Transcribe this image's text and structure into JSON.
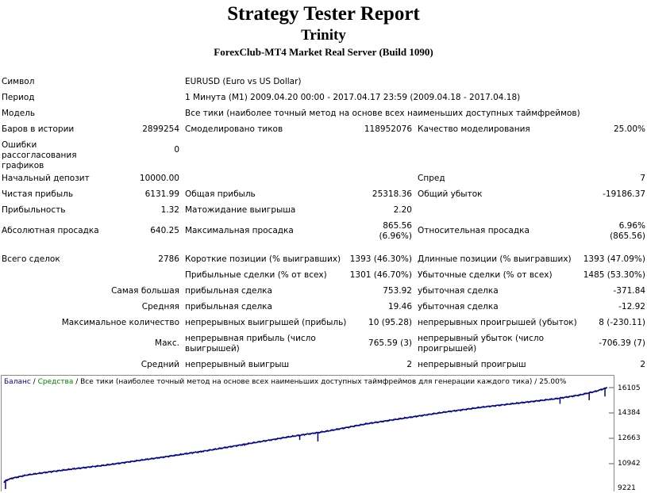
{
  "header": {
    "title": "Strategy Tester Report",
    "expert": "Trinity",
    "server": "ForexClub-MT4 Market Real Server (Build 1090)"
  },
  "info": {
    "symbol_label": "Символ",
    "symbol_value": "EURUSD (Euro vs US Dollar)",
    "period_label": "Период",
    "period_value": "1 Минута (M1) 2009.04.20 00:00 - 2017.04.17 23:59 (2009.04.18 - 2017.04.18)",
    "model_label": "Модель",
    "model_value": "Все тики (наиболее точный метод на основе всех наименьших доступных таймфреймов)",
    "bars_label": "Баров в истории",
    "bars_value": "2899254",
    "ticks_label": "Смоделировано тиков",
    "ticks_value": "118952076",
    "quality_label": "Качество моделирования",
    "quality_value": "25.00%",
    "errors_label": "Ошибки рассогласования графиков",
    "errors_value": "0"
  },
  "stats": {
    "deposit_label": "Начальный депозит",
    "deposit_value": "10000.00",
    "spread_label": "Спред",
    "spread_value": "7",
    "net_label": "Чистая прибыль",
    "net_value": "6131.99",
    "gross_profit_label": "Общая прибыль",
    "gross_profit_value": "25318.36",
    "gross_loss_label": "Общий убыток",
    "gross_loss_value": "-19186.37",
    "pf_label": "Прибыльность",
    "pf_value": "1.32",
    "payoff_label": "Матожидание выигрыша",
    "payoff_value": "2.20",
    "abs_dd_label": "Абсолютная просадка",
    "abs_dd_value": "640.25",
    "max_dd_label": "Максимальная просадка",
    "max_dd_value1": "865.56",
    "max_dd_value2": "(6.96%)",
    "rel_dd_label": "Относительная просадка",
    "rel_dd_value1": "6.96%",
    "rel_dd_value2": "(865.56)"
  },
  "trades": {
    "total_label": "Всего сделок",
    "total_value": "2786",
    "short_label": "Короткие позиции (% выигравших)",
    "short_value": "1393 (46.30%)",
    "long_label": "Длинные позиции (% выигравших)",
    "long_value": "1393 (47.09%)",
    "profit_trades_label": "Прибыльные сделки (% от всех)",
    "profit_trades_value": "1301 (46.70%)",
    "loss_trades_label": "Убыточные сделки (% от всех)",
    "loss_trades_value": "1485 (53.30%)",
    "largest_label": "Самая большая",
    "largest_profit_label": "прибыльная сделка",
    "largest_profit_value": "753.92",
    "largest_loss_label": "убыточная сделка",
    "largest_loss_value": "-371.84",
    "average_label": "Средняя",
    "average_profit_label": "прибыльная сделка",
    "average_profit_value": "19.46",
    "average_loss_label": "убыточная сделка",
    "average_loss_value": "-12.92",
    "maxcount_label": "Максимальное количество",
    "maxcount_wins_label": "непрерывных выигрышей (прибыль)",
    "maxcount_wins_value": "10 (95.28)",
    "maxcount_losses_label": "непрерывных проигрышей (убыток)",
    "maxcount_losses_value": "8 (-230.11)",
    "max_label": "Макс.",
    "max_profit_label": "непрерывная прибыль (число выигрышей)",
    "max_profit_value": "765.59 (3)",
    "max_loss_label": "непрерывный убыток (число проигрышей)",
    "max_loss_value": "-706.39 (7)",
    "avg_label": "Средний",
    "avg_win_label": "непрерывный выигрыш",
    "avg_win_value": "2",
    "avg_loss_label": "непрерывный проигрыш",
    "avg_loss_value": "2"
  },
  "legend": {
    "balance": "Баланс",
    "sep1": " / ",
    "equity": "Средства",
    "rest": " / Все тики (наиболее точный метод на основе всех наименьших доступных таймфреймов для генерации каждого тика) / 25.00%"
  },
  "colors": {
    "balance": "#00008b",
    "equity": "#008000",
    "balance_legend": "#00008b",
    "equity_legend": "#008000"
  },
  "chart_data": {
    "type": "line",
    "y_ticks": [
      "16105",
      "14384",
      "12663",
      "10942",
      "9221"
    ],
    "ylim": [
      9221,
      16400
    ],
    "series": [
      {
        "name": "Баланс",
        "x": [
          0,
          2,
          10,
          30,
          60,
          90,
          130,
          170,
          210,
          260,
          310,
          360,
          410,
          460,
          510,
          560,
          610,
          660,
          700,
          730,
          750,
          765
        ],
        "values": [
          9650,
          9800,
          9950,
          10180,
          10400,
          10600,
          10850,
          11150,
          11450,
          11850,
          12300,
          12750,
          13150,
          13650,
          14050,
          14450,
          14800,
          15100,
          15350,
          15600,
          15850,
          16105
        ]
      }
    ],
    "drawdowns": [
      [
        2,
        9221
      ],
      [
        250,
        11700
      ],
      [
        305,
        12150
      ],
      [
        375,
        12550
      ],
      [
        398,
        12450
      ],
      [
        705,
        15000
      ],
      [
        742,
        15250
      ],
      [
        762,
        15500
      ]
    ]
  }
}
